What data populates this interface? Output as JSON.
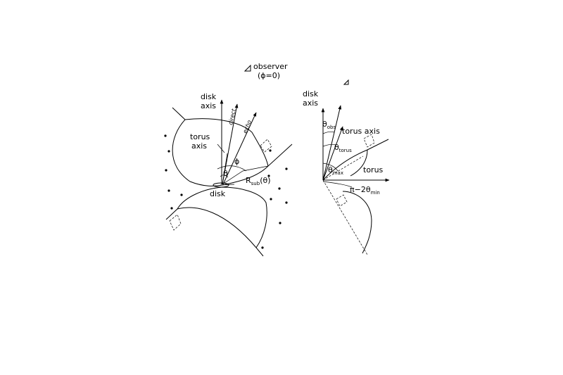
{
  "observer": {
    "label": "observer",
    "sublabel": "(ϕ=0)",
    "icon": "eye-icon"
  },
  "left_panel": {
    "disk_axis_line1": "disk",
    "disk_axis_line2": "axis",
    "direct": "direct",
    "echo": "echo",
    "torus_axis_line1": "torus",
    "torus_axis_line2": "axis",
    "phi": "ϕ",
    "theta": "θ",
    "rsub_main": "R",
    "rsub_sub": "sub",
    "rsub_arg": "(θ)",
    "disk": "disk"
  },
  "right_panel": {
    "disk_axis_line1": "disk",
    "disk_axis_line2": "axis",
    "theta_obs_main": "θ",
    "theta_obs_sub": "obs",
    "torus_axis": "torus axis",
    "theta_torus_main": "θ",
    "theta_torus_sub": "torus",
    "theta_max_main": "θ",
    "theta_max_sub": "max",
    "torus": "torus",
    "pi_label_main": "π−2θ",
    "pi_label_sub": "min"
  }
}
